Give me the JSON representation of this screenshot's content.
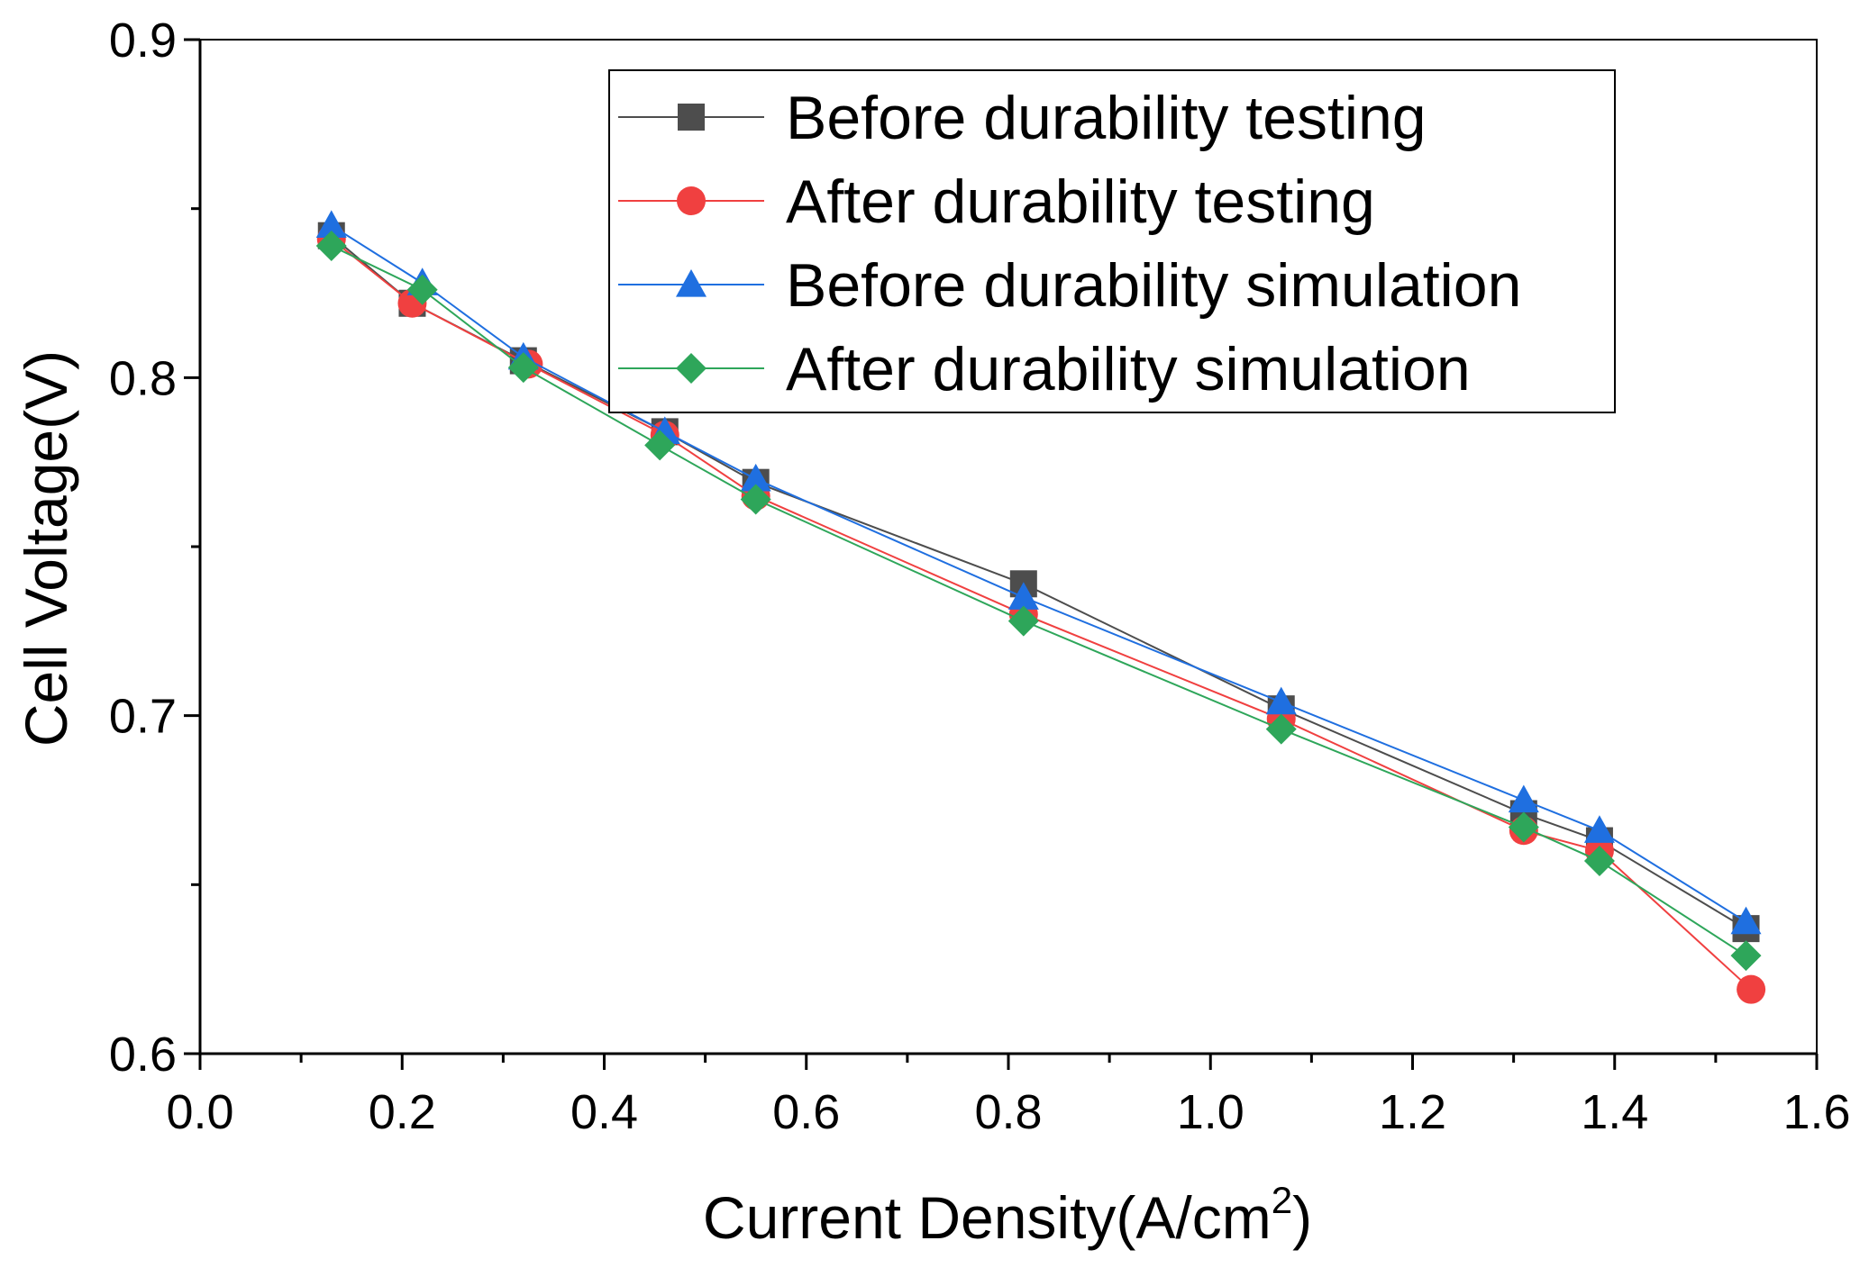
{
  "chart_data": {
    "type": "line",
    "title": "",
    "xlabel": "Current Density(A/cm",
    "xlabel_superscript": "2",
    "xlabel_suffix": ")",
    "ylabel": "Cell Voltage(V)",
    "xlim": [
      0.0,
      1.6
    ],
    "ylim": [
      0.6,
      0.9
    ],
    "x_ticks": [
      0.0,
      0.2,
      0.4,
      0.6,
      0.8,
      1.0,
      1.2,
      1.4,
      1.6
    ],
    "x_tick_labels": [
      "0.0",
      "0.2",
      "0.4",
      "0.6",
      "0.8",
      "1.0",
      "1.2",
      "1.4",
      "1.6"
    ],
    "y_ticks": [
      0.6,
      0.7,
      0.8,
      0.9
    ],
    "y_tick_labels": [
      "0.6",
      "0.7",
      "0.8",
      "0.9"
    ],
    "x_minor_step": 0.1,
    "y_minor_step": 0.05,
    "grid": false,
    "legend_position": "top-right",
    "series": [
      {
        "name": "Before durability testing",
        "marker": "square",
        "color": "#4d4d4d",
        "x": [
          0.13,
          0.21,
          0.32,
          0.46,
          0.55,
          0.815,
          1.07,
          1.31,
          1.385,
          1.53
        ],
        "y": [
          0.842,
          0.822,
          0.805,
          0.784,
          0.769,
          0.739,
          0.702,
          0.671,
          0.663,
          0.637
        ]
      },
      {
        "name": "After durability testing",
        "marker": "circle",
        "color": "#f04040",
        "x": [
          0.13,
          0.21,
          0.325,
          0.46,
          0.55,
          0.815,
          1.07,
          1.31,
          1.385,
          1.535
        ],
        "y": [
          0.841,
          0.822,
          0.804,
          0.783,
          0.765,
          0.73,
          0.699,
          0.666,
          0.66,
          0.619
        ]
      },
      {
        "name": "Before durability simulation",
        "marker": "triangle",
        "color": "#1f6fe0",
        "x": [
          0.13,
          0.22,
          0.32,
          0.46,
          0.55,
          0.815,
          1.07,
          1.31,
          1.385,
          1.53
        ],
        "y": [
          0.845,
          0.828,
          0.806,
          0.784,
          0.77,
          0.735,
          0.704,
          0.675,
          0.666,
          0.639
        ]
      },
      {
        "name": "After durability simulation",
        "marker": "diamond",
        "color": "#2ea65a",
        "x": [
          0.13,
          0.22,
          0.32,
          0.455,
          0.55,
          0.815,
          1.07,
          1.31,
          1.385,
          1.53
        ],
        "y": [
          0.839,
          0.826,
          0.803,
          0.78,
          0.764,
          0.728,
          0.696,
          0.667,
          0.657,
          0.629
        ]
      }
    ]
  }
}
